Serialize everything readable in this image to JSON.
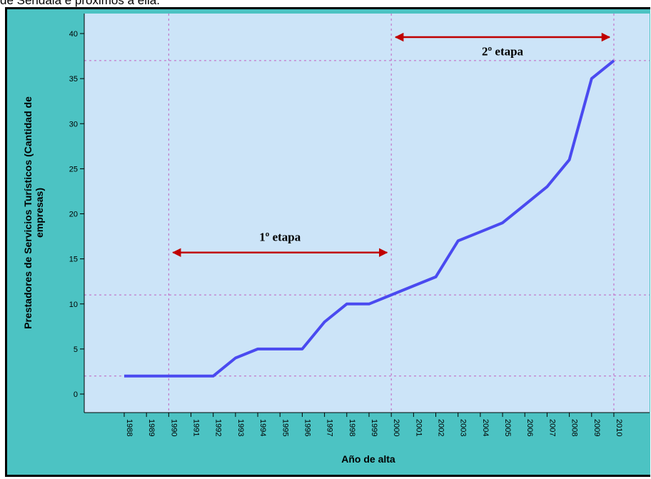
{
  "caption": "de Sendala e próximos a ella.",
  "colors": {
    "frame_bg": "#4cc3c3",
    "plot_bg": "#cce4f8",
    "line": "#4a4af0",
    "grid": "#c060c0",
    "arrow": "#c00000"
  },
  "chart_data": {
    "type": "line",
    "title": "",
    "xlabel": "Año de alta",
    "ylabel_lines": [
      "Prestadores de Servicios Turísticos (Cantidad de",
      "empresas)"
    ],
    "x": [
      "1988",
      "1989",
      "1990",
      "1991",
      "1992",
      "1993",
      "1994",
      "1995",
      "1996",
      "1997",
      "1998",
      "1999",
      "2000",
      "2001",
      "2002",
      "2003",
      "2004",
      "2005",
      "2006",
      "2007",
      "2008",
      "2009",
      "2010"
    ],
    "series": [
      {
        "values": [
          2,
          2,
          2,
          2,
          2,
          4,
          5,
          5,
          5,
          8,
          10,
          10,
          11,
          12,
          13,
          17,
          18,
          19,
          21,
          23,
          26,
          35,
          37
        ]
      }
    ],
    "ylim": [
      0,
      40
    ],
    "yticks": [
      0,
      5,
      10,
      15,
      20,
      25,
      30,
      35,
      40
    ],
    "reference_lines": {
      "horizontal": [
        2,
        11,
        37
      ],
      "vertical": [
        "1990",
        "2000",
        "2010"
      ]
    },
    "annotations": [
      {
        "text": "1º etapa",
        "from": "1990",
        "to": "2000",
        "y": 15.7,
        "label_y": 17
      },
      {
        "text": "2º etapa",
        "from": "2000",
        "to": "2010",
        "y": 39.6,
        "label_y": 37.6
      }
    ],
    "grid": false,
    "legend": "none"
  }
}
